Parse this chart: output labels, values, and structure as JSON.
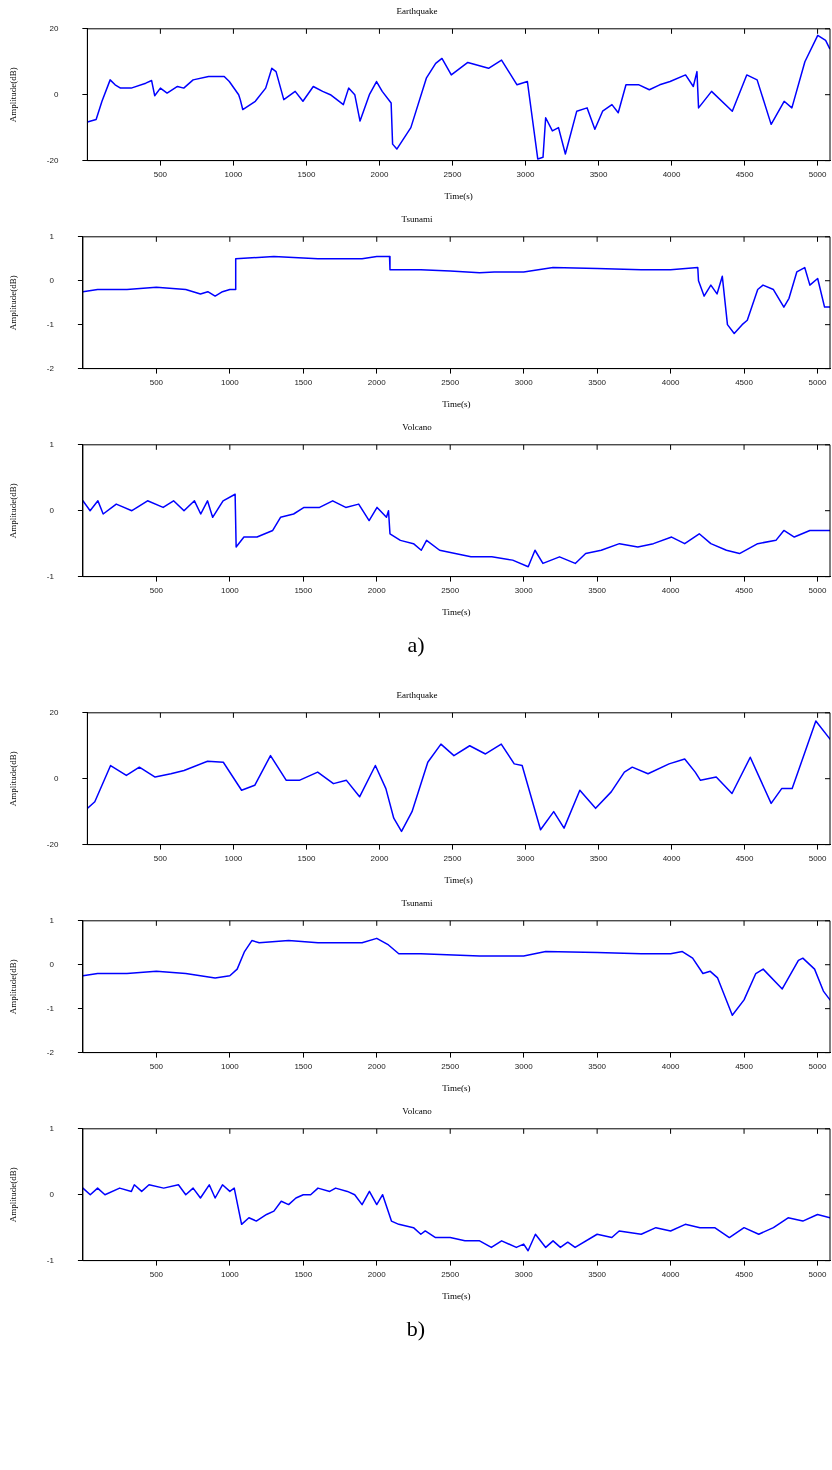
{
  "chart_data": [
    {
      "type": "line",
      "title": "Earthquake",
      "xlabel": "Time(s)",
      "ylabel": "Amplitude(dB)",
      "color": "#0000ff",
      "marker": "none",
      "line_style": "solid",
      "grid": false,
      "legend": false,
      "xlim": [
        0,
        5085
      ],
      "xticks": [
        500,
        1000,
        1500,
        2000,
        2500,
        3000,
        3500,
        4000,
        4500,
        5000
      ],
      "ylim": [
        -20,
        20
      ],
      "yticks": [
        -20,
        0,
        20
      ],
      "x": [
        0,
        60,
        100,
        156,
        190,
        227,
        300,
        400,
        440,
        461,
        500,
        546,
        617,
        660,
        724,
        830,
        937,
        972,
        1036,
        1047,
        1064,
        1150,
        1221,
        1263,
        1292,
        1345,
        1423,
        1476,
        1547,
        1611,
        1664,
        1753,
        1789,
        1831,
        1867,
        1931,
        1980,
        2019,
        2080,
        2090,
        2119,
        2215,
        2321,
        2385,
        2428,
        2492,
        2605,
        2747,
        2836,
        2942,
        3013,
        3084,
        3120,
        3138,
        3184,
        3226,
        3273,
        3351,
        3422,
        3475,
        3528,
        3592,
        3635,
        3688,
        3777,
        3848,
        3919,
        3990,
        4096,
        4149,
        4174,
        4185,
        4274,
        4416,
        4515,
        4586,
        4682,
        4771,
        4824,
        4913,
        5001,
        5055,
        5083
      ],
      "values": [
        -8.3,
        -7.5,
        -2,
        4.5,
        3,
        2,
        2,
        3.5,
        4.3,
        -0.3,
        2,
        0.5,
        2.5,
        2,
        4.5,
        5.5,
        5.5,
        4,
        0,
        -1.5,
        -4.5,
        -2,
        2,
        8,
        7,
        -1.5,
        1,
        -2,
        2.5,
        1,
        0,
        -3,
        2,
        0,
        -8,
        0,
        4,
        1,
        -2.5,
        -15,
        -16.5,
        -10,
        5,
        9.5,
        11,
        6,
        9.8,
        8,
        10.5,
        3,
        4,
        -19.5,
        -19,
        -7,
        -11,
        -10,
        -18,
        -5,
        -4,
        -10.5,
        -5,
        -3,
        -5.5,
        3,
        3,
        1.5,
        3,
        4,
        6,
        2.5,
        7,
        -4,
        1,
        -5,
        6,
        4.5,
        -9,
        -2,
        -4,
        10,
        18,
        16.5,
        14
      ]
    },
    {
      "type": "line",
      "title": "Tsunami",
      "xlabel": "Time(s)",
      "ylabel": "Amplitude(dB)",
      "color": "#0000ff",
      "marker": "none",
      "line_style": "solid",
      "grid": false,
      "legend": false,
      "xlim": [
        0,
        5085
      ],
      "xticks": [
        500,
        1000,
        1500,
        2000,
        2500,
        3000,
        3500,
        4000,
        4500,
        5000
      ],
      "ylim": [
        -2,
        1
      ],
      "yticks": [
        -2,
        -1,
        0,
        1
      ],
      "x": [
        0,
        100,
        200,
        300,
        500,
        700,
        800,
        850,
        900,
        950,
        1000,
        1036,
        1040,
        1300,
        1600,
        1900,
        2000,
        2087,
        2090,
        2300,
        2500,
        2700,
        2800,
        3000,
        3200,
        3500,
        3800,
        4000,
        4185,
        4190,
        4228,
        4274,
        4316,
        4352,
        4387,
        4433,
        4487,
        4522,
        4593,
        4629,
        4700,
        4771,
        4806,
        4859,
        4913,
        4948,
        5001,
        5048,
        5083
      ],
      "values": [
        -0.25,
        -0.2,
        -0.2,
        -0.2,
        -0.15,
        -0.2,
        -0.3,
        -0.25,
        -0.35,
        -0.25,
        -0.2,
        -0.2,
        0.5,
        0.55,
        0.5,
        0.5,
        0.55,
        0.55,
        0.25,
        0.25,
        0.22,
        0.18,
        0.2,
        0.2,
        0.3,
        0.28,
        0.25,
        0.25,
        0.3,
        0.0,
        -0.35,
        -0.1,
        -0.3,
        0.1,
        -1.0,
        -1.2,
        -1.0,
        -0.9,
        -0.2,
        -0.1,
        -0.2,
        -0.6,
        -0.4,
        0.2,
        0.3,
        -0.1,
        0.05,
        -0.6,
        -0.6
      ]
    },
    {
      "type": "line",
      "title": "Volcano",
      "xlabel": "Time(s)",
      "ylabel": "Amplitude(dB)",
      "color": "#0000ff",
      "marker": "none",
      "line_style": "solid",
      "grid": false,
      "legend": false,
      "xlim": [
        0,
        5085
      ],
      "xticks": [
        500,
        1000,
        1500,
        2000,
        2500,
        3000,
        3500,
        4000,
        4500,
        5000
      ],
      "ylim": [
        -1,
        1
      ],
      "yticks": [
        -1,
        0,
        1
      ],
      "annotations": [
        "a)"
      ],
      "x": [
        0,
        49,
        102,
        138,
        227,
        333,
        440,
        546,
        617,
        688,
        759,
        802,
        848,
        883,
        954,
        1036,
        1043,
        1096,
        1185,
        1292,
        1345,
        1434,
        1505,
        1611,
        1700,
        1789,
        1877,
        1948,
        2002,
        2066,
        2080,
        2090,
        2161,
        2250,
        2303,
        2339,
        2428,
        2534,
        2641,
        2783,
        2925,
        3031,
        3077,
        3131,
        3244,
        3351,
        3422,
        3528,
        3652,
        3777,
        3883,
        4007,
        4096,
        4195,
        4274,
        4380,
        4469,
        4593,
        4717,
        4771,
        4842,
        4948,
        5083
      ],
      "values": [
        0.15,
        0.0,
        0.15,
        -0.05,
        0.1,
        0.0,
        0.15,
        0.05,
        0.15,
        0.0,
        0.15,
        -0.05,
        0.15,
        -0.1,
        0.15,
        0.25,
        -0.55,
        -0.4,
        -0.4,
        -0.3,
        -0.1,
        -0.05,
        0.05,
        0.05,
        0.15,
        0.05,
        0.1,
        -0.15,
        0.05,
        -0.1,
        0.0,
        -0.35,
        -0.45,
        -0.5,
        -0.6,
        -0.45,
        -0.6,
        -0.65,
        -0.7,
        -0.7,
        -0.75,
        -0.85,
        -0.6,
        -0.8,
        -0.7,
        -0.8,
        -0.65,
        -0.6,
        -0.5,
        -0.55,
        -0.5,
        -0.4,
        -0.5,
        -0.35,
        -0.5,
        -0.6,
        -0.65,
        -0.5,
        -0.45,
        -0.3,
        -0.4,
        -0.3,
        -0.3
      ]
    },
    {
      "type": "line",
      "title": "Earthquake",
      "xlabel": "Time(s)",
      "ylabel": "Amplitude(dB)",
      "color": "#0000ff",
      "marker": "none",
      "line_style": "solid",
      "grid": false,
      "legend": false,
      "xlim": [
        0,
        5085
      ],
      "xticks": [
        500,
        1000,
        1500,
        2000,
        2500,
        3000,
        3500,
        4000,
        4500,
        5000
      ],
      "ylim": [
        -20,
        20
      ],
      "yticks": [
        -20,
        0,
        20
      ],
      "x": [
        0,
        51,
        159,
        267,
        356,
        464,
        572,
        662,
        823,
        931,
        1056,
        1146,
        1254,
        1362,
        1451,
        1577,
        1685,
        1774,
        1864,
        1972,
        2044,
        2098,
        2151,
        2223,
        2331,
        2421,
        2510,
        2618,
        2726,
        2834,
        2923,
        2977,
        3103,
        3193,
        3264,
        3372,
        3480,
        3587,
        3677,
        3731,
        3839,
        3983,
        4090,
        4162,
        4198,
        4306,
        4414,
        4539,
        4682,
        4754,
        4826,
        4988,
        5085
      ],
      "values": [
        -9,
        -7,
        4,
        1,
        3.5,
        0.5,
        1.5,
        2.5,
        5.3,
        5,
        -3.5,
        -2,
        7,
        -0.5,
        -0.5,
        2,
        -1.5,
        -0.5,
        -5.5,
        4,
        -3,
        -12,
        -16,
        -10,
        5,
        10.5,
        7,
        10,
        7.5,
        10.5,
        4.5,
        4,
        -15.5,
        -10,
        -15,
        -3.5,
        -9,
        -4,
        2,
        3.5,
        1.5,
        4.5,
        6,
        2,
        -0.5,
        0.5,
        -4.5,
        6.5,
        -7.5,
        -3,
        -3,
        17.5,
        12
      ]
    },
    {
      "type": "line",
      "title": "Tsunami",
      "xlabel": "Time(s)",
      "ylabel": "Amplitude(dB)",
      "color": "#0000ff",
      "marker": "none",
      "line_style": "solid",
      "grid": false,
      "legend": false,
      "xlim": [
        0,
        5085
      ],
      "xticks": [
        500,
        1000,
        1500,
        2000,
        2500,
        3000,
        3500,
        4000,
        4500,
        5000
      ],
      "ylim": [
        -2,
        1
      ],
      "yticks": [
        -2,
        -1,
        0,
        1
      ],
      "x": [
        0,
        100,
        300,
        500,
        700,
        900,
        1000,
        1050,
        1100,
        1150,
        1200,
        1400,
        1600,
        1900,
        2000,
        2080,
        2150,
        2300,
        2700,
        3000,
        3150,
        3500,
        3800,
        4000,
        4080,
        4150,
        4220,
        4270,
        4320,
        4420,
        4500,
        4580,
        4630,
        4760,
        4870,
        4900,
        4980,
        5040,
        5085
      ],
      "values": [
        -0.25,
        -0.2,
        -0.2,
        -0.15,
        -0.2,
        -0.3,
        -0.25,
        -0.1,
        0.3,
        0.55,
        0.5,
        0.55,
        0.5,
        0.5,
        0.6,
        0.45,
        0.25,
        0.25,
        0.2,
        0.2,
        0.3,
        0.28,
        0.25,
        0.25,
        0.3,
        0.15,
        -0.2,
        -0.15,
        -0.3,
        -1.15,
        -0.8,
        -0.2,
        -0.1,
        -0.55,
        0.1,
        0.15,
        -0.1,
        -0.6,
        -0.8
      ]
    },
    {
      "type": "line",
      "title": "Volcano",
      "xlabel": "Time(s)",
      "ylabel": "Amplitude(dB)",
      "color": "#0000ff",
      "marker": "none",
      "line_style": "solid",
      "grid": false,
      "legend": false,
      "xlim": [
        0,
        5085
      ],
      "xticks": [
        500,
        1000,
        1500,
        2000,
        2500,
        3000,
        3500,
        4000,
        4500,
        5000
      ],
      "ylim": [
        -1,
        1
      ],
      "yticks": [
        -1,
        0,
        1
      ],
      "annotations": [
        "b)"
      ],
      "x": [
        0,
        50,
        100,
        150,
        250,
        330,
        350,
        400,
        450,
        550,
        650,
        700,
        750,
        800,
        860,
        900,
        950,
        1000,
        1030,
        1080,
        1130,
        1180,
        1250,
        1300,
        1350,
        1400,
        1450,
        1500,
        1550,
        1600,
        1680,
        1720,
        1800,
        1850,
        1900,
        1950,
        2000,
        2040,
        2100,
        2150,
        2250,
        2300,
        2330,
        2400,
        2500,
        2600,
        2700,
        2780,
        2850,
        2950,
        3000,
        3030,
        3080,
        3150,
        3200,
        3250,
        3300,
        3350,
        3500,
        3600,
        3650,
        3800,
        3900,
        4000,
        4100,
        4200,
        4300,
        4400,
        4500,
        4600,
        4700,
        4800,
        4900,
        5000,
        5085
      ],
      "values": [
        0.1,
        0.0,
        0.1,
        0.0,
        0.1,
        0.05,
        0.15,
        0.05,
        0.15,
        0.1,
        0.15,
        0.0,
        0.1,
        -0.05,
        0.15,
        -0.05,
        0.15,
        0.05,
        0.1,
        -0.45,
        -0.35,
        -0.4,
        -0.3,
        -0.25,
        -0.1,
        -0.15,
        -0.05,
        0.0,
        0.0,
        0.1,
        0.05,
        0.1,
        0.05,
        0.0,
        -0.15,
        0.05,
        -0.15,
        0.0,
        -0.4,
        -0.45,
        -0.5,
        -0.6,
        -0.55,
        -0.65,
        -0.65,
        -0.7,
        -0.7,
        -0.8,
        -0.7,
        -0.8,
        -0.75,
        -0.85,
        -0.6,
        -0.8,
        -0.7,
        -0.8,
        -0.72,
        -0.8,
        -0.6,
        -0.65,
        -0.55,
        -0.6,
        -0.5,
        -0.55,
        -0.45,
        -0.5,
        -0.5,
        -0.65,
        -0.5,
        -0.6,
        -0.5,
        -0.35,
        -0.4,
        -0.3,
        -0.35
      ]
    }
  ]
}
